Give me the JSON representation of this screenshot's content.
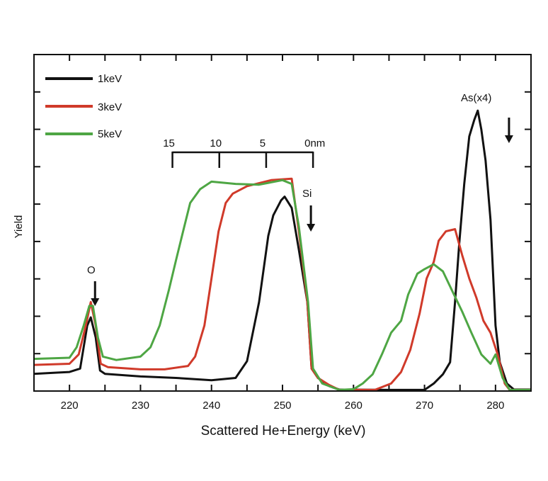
{
  "chart_data": {
    "type": "line",
    "title": "",
    "xlabel": "Scattered He+Energy (keV)",
    "ylabel": "Yield",
    "xlim": [
      215,
      285
    ],
    "ylim": [
      0,
      9
    ],
    "xticks": [
      220,
      230,
      240,
      250,
      260,
      270,
      280
    ],
    "xtick_labels": [
      "220",
      "230",
      "240",
      "250",
      "260",
      "270",
      "280"
    ],
    "x_minor_step": 5,
    "y_tick_step": 1,
    "grid": false,
    "legend_position": "top-left",
    "series": [
      {
        "name": "1keV",
        "color": "#111111",
        "x": [
          215,
          218,
          220,
          221.5,
          222.5,
          223,
          223.7,
          224.3,
          225,
          230,
          235,
          240,
          243.4,
          245,
          246.7,
          248,
          248.7,
          249.8,
          250.3,
          251.3,
          252.3,
          253.5,
          254.1,
          255,
          256.6,
          258,
          265,
          270,
          271.3,
          272.6,
          273.6,
          274.3,
          274.9,
          275.6,
          276.3,
          277,
          277.5,
          278,
          278.6,
          279.3,
          280,
          280.6,
          281.6,
          282.6,
          285
        ],
        "y": [
          0.46,
          0.49,
          0.51,
          0.6,
          1.75,
          1.97,
          1.43,
          0.55,
          0.46,
          0.39,
          0.35,
          0.29,
          0.35,
          0.8,
          2.38,
          4.15,
          4.7,
          5.1,
          5.2,
          4.9,
          3.78,
          2.38,
          0.6,
          0.35,
          0.13,
          0.04,
          0.03,
          0.03,
          0.2,
          0.45,
          0.77,
          2.38,
          3.96,
          5.54,
          6.81,
          7.25,
          7.5,
          7.0,
          6.17,
          4.58,
          1.75,
          0.77,
          0.2,
          0.04,
          0.04
        ]
      },
      {
        "name": "3keV",
        "color": "#d03a2a",
        "x": [
          215,
          220,
          221.3,
          222.3,
          223,
          223.7,
          224.4,
          225.4,
          230,
          233.4,
          236.7,
          237.7,
          239,
          240,
          241,
          242,
          243,
          245,
          248.4,
          251.3,
          252.3,
          253.5,
          254.1,
          255,
          256.6,
          258,
          263,
          265.3,
          266.7,
          268,
          269.3,
          270.3,
          271.3,
          272,
          273,
          274.3,
          275.3,
          276.3,
          277.3,
          278.3,
          279.3,
          280.3,
          281.3,
          282,
          285
        ],
        "y": [
          0.7,
          0.73,
          0.98,
          1.75,
          2.38,
          1.75,
          0.73,
          0.64,
          0.58,
          0.58,
          0.67,
          0.92,
          1.75,
          3.01,
          4.27,
          5.03,
          5.28,
          5.48,
          5.64,
          5.68,
          4.27,
          2.38,
          0.6,
          0.35,
          0.16,
          0.03,
          0.03,
          0.2,
          0.51,
          1.1,
          2.07,
          3.01,
          3.45,
          4.02,
          4.27,
          4.33,
          3.64,
          3.01,
          2.5,
          1.88,
          1.56,
          0.98,
          0.2,
          0.03,
          0.03
        ]
      },
      {
        "name": "5keV",
        "color": "#4ea644",
        "x": [
          215,
          220,
          221,
          222,
          222.8,
          223.3,
          224,
          224.7,
          226.6,
          230,
          231.4,
          232.7,
          234,
          235,
          236,
          237,
          238.4,
          240,
          243.4,
          246.7,
          250,
          251.3,
          252.3,
          253.6,
          254.3,
          255.6,
          258,
          260,
          261.3,
          262.7,
          264,
          265.3,
          266.7,
          267.7,
          269,
          270,
          271.3,
          272.6,
          274,
          275.3,
          276.6,
          278,
          279.3,
          280,
          281,
          282,
          285
        ],
        "y": [
          0.86,
          0.89,
          1.17,
          1.75,
          2.28,
          2.28,
          1.43,
          0.92,
          0.83,
          0.92,
          1.17,
          1.75,
          2.7,
          3.5,
          4.27,
          5.03,
          5.4,
          5.6,
          5.54,
          5.52,
          5.64,
          5.54,
          4.4,
          2.38,
          0.6,
          0.2,
          0.03,
          0.05,
          0.2,
          0.45,
          0.98,
          1.56,
          1.88,
          2.58,
          3.14,
          3.26,
          3.39,
          3.2,
          2.64,
          2.13,
          1.56,
          0.98,
          0.73,
          0.98,
          0.35,
          0.03,
          0.03
        ]
      }
    ],
    "annotations": {
      "oxygen": {
        "label": "O",
        "arrow_x": 223.6
      },
      "silicon": {
        "label": "Si",
        "arrow_x": 254.0
      },
      "arsenic": {
        "label": "As(x4)",
        "arrow_x": 281.9
      }
    },
    "depth_scale": {
      "labels": [
        "15",
        "10",
        "5",
        "0nm"
      ],
      "energies": [
        234.5,
        241.1,
        247.7,
        254.3
      ]
    }
  }
}
